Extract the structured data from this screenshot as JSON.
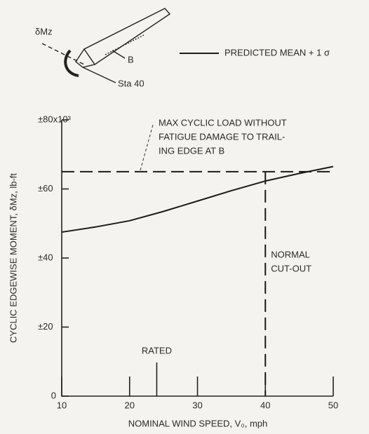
{
  "chart_data": {
    "type": "line",
    "x": [
      10,
      15,
      20,
      25,
      30,
      35,
      40,
      45,
      50
    ],
    "series": [
      {
        "name": "PREDICTED MEAN + 1 σ",
        "color": "#1a1a1a",
        "values": [
          47.5,
          49,
          50.8,
          53.5,
          56.5,
          59.5,
          62.3,
          64.5,
          66.5
        ]
      }
    ],
    "xlim": [
      10,
      50
    ],
    "xticks": [
      10,
      20,
      30,
      40,
      50
    ],
    "ylim": [
      0,
      80
    ],
    "yticks": [
      0,
      {
        "value": 20,
        "label": "±20"
      },
      {
        "value": 40,
        "label": "±40"
      },
      {
        "value": 60,
        "label": "±60"
      },
      {
        "value": 80,
        "label": "±80x10³"
      }
    ],
    "xlabel": "NOMINAL WIND SPEED, V₀, mph",
    "ylabel": "CYCLIC EDGEWISE MOMENT, δMz, lb-ft",
    "reference_lines": [
      {
        "axis": "y",
        "value": 65,
        "label": [
          "MAX CYCLIC LOAD WITHOUT",
          "FATIGUE DAMAGE TO TRAIL-",
          "ING EDGE AT  B"
        ]
      },
      {
        "axis": "x",
        "value": 40,
        "label": [
          "NORMAL",
          "CUT-OUT"
        ]
      },
      {
        "axis": "x",
        "value": 24,
        "label": [
          "RATED"
        ]
      }
    ],
    "diagram_labels": [
      "δMz",
      "B",
      "Sta 40"
    ],
    "legend": "top-right"
  }
}
